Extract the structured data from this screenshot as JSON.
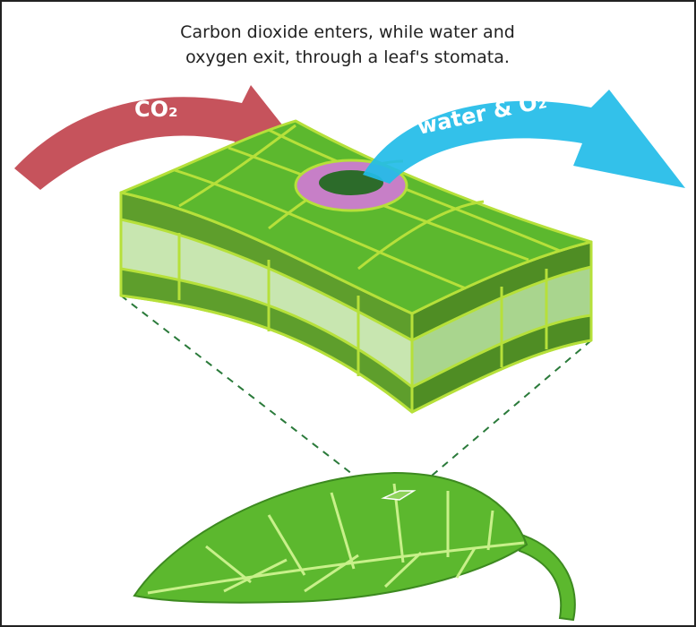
{
  "caption": {
    "lines": [
      "Carbon dioxide enters, while water and",
      "oxygen exit, through a leaf's stomata."
    ]
  },
  "arrows": {
    "in_label": "CO₂",
    "out_label": "water & O₂"
  }
}
